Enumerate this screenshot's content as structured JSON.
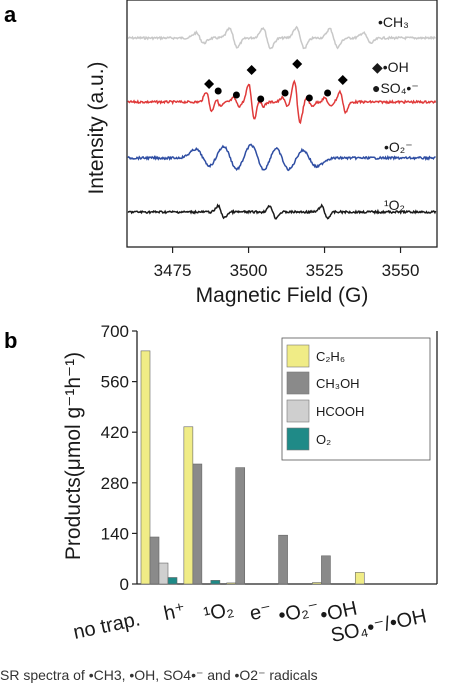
{
  "panels": {
    "a_label": "a",
    "b_label": "b"
  },
  "chart_data": [
    {
      "type": "line",
      "xlabel": "Magnetic Field (G)",
      "ylabel": "Intensity (a.u.)",
      "xlim": [
        3460,
        3562
      ],
      "x_ticks": [
        "3475",
        "3500",
        "3525",
        "3550"
      ],
      "x_tick_values": [
        3475,
        3500,
        3525,
        3550
      ],
      "series": [
        {
          "name": "•CH₃",
          "color": "#c8c8c8",
          "kind": "ch3"
        },
        {
          "name": "•OH",
          "color": "#e03a3a",
          "kind": "oh"
        },
        {
          "name": "•O₂⁻",
          "color": "#2f4ea3",
          "kind": "o2m"
        },
        {
          "name": "¹O₂",
          "color": "#1a1a1a",
          "kind": "singlet"
        }
      ],
      "markers": {
        "oh_symbol": "◆",
        "oh_label": "•OH",
        "oh_positions": [
          3487,
          3501,
          3516,
          3531
        ],
        "so4_symbol": "●",
        "so4_label": "SO₄•⁻",
        "so4_positions": [
          3490,
          3496,
          3504,
          3512,
          3520,
          3526
        ]
      }
    },
    {
      "type": "bar",
      "ylabel": "Products(μmol g⁻¹h⁻¹)",
      "ylim": [
        0,
        700
      ],
      "y_ticks": [
        "0",
        "140",
        "280",
        "420",
        "560",
        "700"
      ],
      "y_tick_values": [
        0,
        140,
        280,
        420,
        560,
        700
      ],
      "categories": [
        "no trap.",
        "h⁺",
        "¹O₂",
        "e⁻",
        "•O₂⁻",
        "•OH",
        "SO₄•⁻/•OH"
      ],
      "series": [
        {
          "name": "C₂H₆",
          "color": "#f0ec86",
          "values": [
            645,
            435,
            3,
            0,
            4,
            32,
            0
          ]
        },
        {
          "name": "CH₃OH",
          "color": "#8a8a8a",
          "values": [
            130,
            332,
            322,
            135,
            78,
            0,
            0
          ]
        },
        {
          "name": "HCOOH",
          "color": "#cfcfcf",
          "values": [
            58,
            0,
            0,
            0,
            0,
            0,
            0
          ]
        },
        {
          "name": "O₂",
          "color": "#1f8a87",
          "values": [
            18,
            10,
            0,
            0,
            0,
            0,
            0
          ]
        }
      ],
      "legend": "top-right"
    }
  ],
  "caption": "SR spectra of •CH3, •OH, SO4•⁻ and •O2⁻ radicals"
}
